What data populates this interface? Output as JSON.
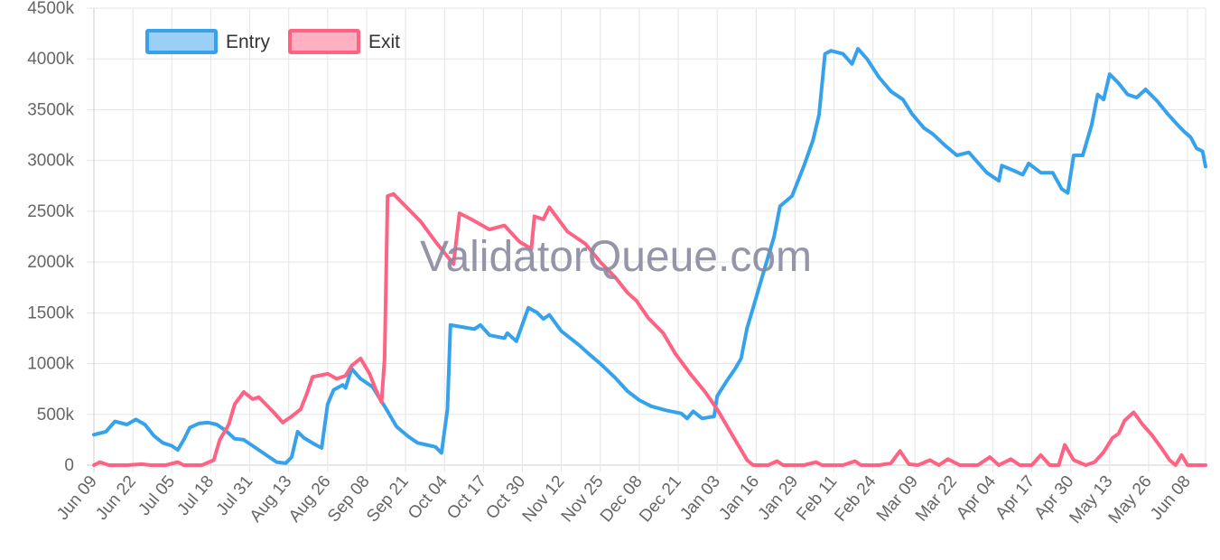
{
  "watermark": "ValidatorQueue.com",
  "colors": {
    "entry": "#36a2eb",
    "entry_fill": "#9ad0f5",
    "exit": "#ff6384",
    "exit_fill": "#ffb1c1",
    "grid": "#e5e5e5",
    "axis": "#cfcfcf",
    "text": "#666666",
    "watermark": "#8a8aa0"
  },
  "chart_data": {
    "type": "line",
    "title": "",
    "xlabel": "",
    "ylabel": "",
    "grid": true,
    "legend_position": "top-left",
    "ylim": [
      0,
      4500000
    ],
    "ytick_values": [
      0,
      500000,
      1000000,
      1500000,
      2000000,
      2500000,
      3000000,
      3500000,
      4000000,
      4500000
    ],
    "yticks": [
      "0",
      "500k",
      "1000k",
      "1500k",
      "2000k",
      "2500k",
      "3000k",
      "3500k",
      "4000k",
      "4500k"
    ],
    "x_start": "2023-06-09",
    "x_end": "2024-06-14",
    "xticks": [
      {
        "date": "2023-06-09",
        "label": "Jun 09"
      },
      {
        "date": "2023-06-22",
        "label": "Jun 22"
      },
      {
        "date": "2023-07-05",
        "label": "Jul 05"
      },
      {
        "date": "2023-07-18",
        "label": "Jul 18"
      },
      {
        "date": "2023-07-31",
        "label": "Jul 31"
      },
      {
        "date": "2023-08-13",
        "label": "Aug 13"
      },
      {
        "date": "2023-08-26",
        "label": "Aug 26"
      },
      {
        "date": "2023-09-08",
        "label": "Sep 08"
      },
      {
        "date": "2023-09-21",
        "label": "Sep 21"
      },
      {
        "date": "2023-10-04",
        "label": "Oct 04"
      },
      {
        "date": "2023-10-17",
        "label": "Oct 17"
      },
      {
        "date": "2023-10-30",
        "label": "Oct 30"
      },
      {
        "date": "2023-11-12",
        "label": "Nov 12"
      },
      {
        "date": "2023-11-25",
        "label": "Nov 25"
      },
      {
        "date": "2023-12-08",
        "label": "Dec 08"
      },
      {
        "date": "2023-12-21",
        "label": "Dec 21"
      },
      {
        "date": "2024-01-03",
        "label": "Jan 03"
      },
      {
        "date": "2024-01-16",
        "label": "Jan 16"
      },
      {
        "date": "2024-01-29",
        "label": "Jan 29"
      },
      {
        "date": "2024-02-11",
        "label": "Feb 11"
      },
      {
        "date": "2024-02-24",
        "label": "Feb 24"
      },
      {
        "date": "2024-03-09",
        "label": "Mar 09"
      },
      {
        "date": "2024-03-22",
        "label": "Mar 22"
      },
      {
        "date": "2024-04-04",
        "label": "Apr 04"
      },
      {
        "date": "2024-04-17",
        "label": "Apr 17"
      },
      {
        "date": "2024-04-30",
        "label": "Apr 30"
      },
      {
        "date": "2024-05-13",
        "label": "May 13"
      },
      {
        "date": "2024-05-26",
        "label": "May 26"
      },
      {
        "date": "2024-06-08",
        "label": "Jun 08"
      }
    ],
    "series": [
      {
        "name": "Entry",
        "color_key": "entry",
        "points": [
          [
            "2023-06-09",
            300000
          ],
          [
            "2023-06-13",
            330000
          ],
          [
            "2023-06-16",
            430000
          ],
          [
            "2023-06-20",
            400000
          ],
          [
            "2023-06-23",
            450000
          ],
          [
            "2023-06-26",
            400000
          ],
          [
            "2023-06-29",
            290000
          ],
          [
            "2023-07-02",
            220000
          ],
          [
            "2023-07-05",
            190000
          ],
          [
            "2023-07-07",
            150000
          ],
          [
            "2023-07-09",
            250000
          ],
          [
            "2023-07-11",
            370000
          ],
          [
            "2023-07-14",
            410000
          ],
          [
            "2023-07-17",
            420000
          ],
          [
            "2023-07-20",
            400000
          ],
          [
            "2023-07-23",
            340000
          ],
          [
            "2023-07-26",
            260000
          ],
          [
            "2023-07-29",
            250000
          ],
          [
            "2023-08-01",
            190000
          ],
          [
            "2023-08-05",
            110000
          ],
          [
            "2023-08-09",
            30000
          ],
          [
            "2023-08-12",
            20000
          ],
          [
            "2023-08-14",
            80000
          ],
          [
            "2023-08-16",
            330000
          ],
          [
            "2023-08-18",
            270000
          ],
          [
            "2023-08-22",
            200000
          ],
          [
            "2023-08-24",
            170000
          ],
          [
            "2023-08-26",
            600000
          ],
          [
            "2023-08-28",
            740000
          ],
          [
            "2023-08-31",
            790000
          ],
          [
            "2023-09-01",
            760000
          ],
          [
            "2023-09-03",
            950000
          ],
          [
            "2023-09-06",
            850000
          ],
          [
            "2023-09-10",
            770000
          ],
          [
            "2023-09-14",
            580000
          ],
          [
            "2023-09-18",
            380000
          ],
          [
            "2023-09-22",
            280000
          ],
          [
            "2023-09-25",
            220000
          ],
          [
            "2023-09-28",
            200000
          ],
          [
            "2023-10-01",
            180000
          ],
          [
            "2023-10-03",
            120000
          ],
          [
            "2023-10-05",
            550000
          ],
          [
            "2023-10-06",
            1380000
          ],
          [
            "2023-10-10",
            1360000
          ],
          [
            "2023-10-14",
            1340000
          ],
          [
            "2023-10-16",
            1380000
          ],
          [
            "2023-10-19",
            1280000
          ],
          [
            "2023-10-24",
            1250000
          ],
          [
            "2023-10-25",
            1300000
          ],
          [
            "2023-10-28",
            1220000
          ],
          [
            "2023-11-01",
            1550000
          ],
          [
            "2023-11-04",
            1500000
          ],
          [
            "2023-11-06",
            1440000
          ],
          [
            "2023-11-08",
            1480000
          ],
          [
            "2023-11-12",
            1320000
          ],
          [
            "2023-11-18",
            1180000
          ],
          [
            "2023-11-21",
            1100000
          ],
          [
            "2023-11-25",
            1000000
          ],
          [
            "2023-11-30",
            860000
          ],
          [
            "2023-12-04",
            730000
          ],
          [
            "2023-12-08",
            640000
          ],
          [
            "2023-12-12",
            580000
          ],
          [
            "2023-12-17",
            540000
          ],
          [
            "2023-12-22",
            510000
          ],
          [
            "2023-12-24",
            460000
          ],
          [
            "2023-12-26",
            530000
          ],
          [
            "2023-12-29",
            460000
          ],
          [
            "2024-01-02",
            480000
          ],
          [
            "2024-01-03",
            680000
          ],
          [
            "2024-01-06",
            820000
          ],
          [
            "2024-01-09",
            950000
          ],
          [
            "2024-01-11",
            1050000
          ],
          [
            "2024-01-13",
            1350000
          ],
          [
            "2024-01-15",
            1550000
          ],
          [
            "2024-01-18",
            1850000
          ],
          [
            "2024-01-22",
            2250000
          ],
          [
            "2024-01-24",
            2550000
          ],
          [
            "2024-01-28",
            2650000
          ],
          [
            "2024-02-01",
            2950000
          ],
          [
            "2024-02-04",
            3200000
          ],
          [
            "2024-02-06",
            3450000
          ],
          [
            "2024-02-08",
            4050000
          ],
          [
            "2024-02-10",
            4080000
          ],
          [
            "2024-02-14",
            4050000
          ],
          [
            "2024-02-17",
            3950000
          ],
          [
            "2024-02-19",
            4100000
          ],
          [
            "2024-02-22",
            4000000
          ],
          [
            "2024-02-26",
            3820000
          ],
          [
            "2024-03-01",
            3680000
          ],
          [
            "2024-03-05",
            3600000
          ],
          [
            "2024-03-08",
            3460000
          ],
          [
            "2024-03-12",
            3320000
          ],
          [
            "2024-03-15",
            3260000
          ],
          [
            "2024-03-19",
            3150000
          ],
          [
            "2024-03-23",
            3050000
          ],
          [
            "2024-03-27",
            3080000
          ],
          [
            "2024-03-30",
            2980000
          ],
          [
            "2024-04-02",
            2880000
          ],
          [
            "2024-04-06",
            2800000
          ],
          [
            "2024-04-07",
            2950000
          ],
          [
            "2024-04-11",
            2900000
          ],
          [
            "2024-04-14",
            2860000
          ],
          [
            "2024-04-16",
            2970000
          ],
          [
            "2024-04-20",
            2880000
          ],
          [
            "2024-04-24",
            2880000
          ],
          [
            "2024-04-27",
            2720000
          ],
          [
            "2024-04-29",
            2680000
          ],
          [
            "2024-05-01",
            3050000
          ],
          [
            "2024-05-04",
            3050000
          ],
          [
            "2024-05-07",
            3350000
          ],
          [
            "2024-05-09",
            3650000
          ],
          [
            "2024-05-11",
            3600000
          ],
          [
            "2024-05-13",
            3850000
          ],
          [
            "2024-05-16",
            3760000
          ],
          [
            "2024-05-19",
            3650000
          ],
          [
            "2024-05-22",
            3620000
          ],
          [
            "2024-05-25",
            3700000
          ],
          [
            "2024-05-29",
            3580000
          ],
          [
            "2024-06-01",
            3470000
          ],
          [
            "2024-06-05",
            3340000
          ],
          [
            "2024-06-07",
            3280000
          ],
          [
            "2024-06-09",
            3230000
          ],
          [
            "2024-06-11",
            3120000
          ],
          [
            "2024-06-13",
            3090000
          ],
          [
            "2024-06-14",
            2940000
          ]
        ]
      },
      {
        "name": "Exit",
        "color_key": "exit",
        "points": [
          [
            "2023-06-09",
            0
          ],
          [
            "2023-06-11",
            30000
          ],
          [
            "2023-06-14",
            0
          ],
          [
            "2023-06-20",
            0
          ],
          [
            "2023-06-25",
            10000
          ],
          [
            "2023-06-28",
            0
          ],
          [
            "2023-07-03",
            0
          ],
          [
            "2023-07-07",
            30000
          ],
          [
            "2023-07-09",
            0
          ],
          [
            "2023-07-15",
            0
          ],
          [
            "2023-07-19",
            50000
          ],
          [
            "2023-07-21",
            250000
          ],
          [
            "2023-07-24",
            400000
          ],
          [
            "2023-07-26",
            600000
          ],
          [
            "2023-07-29",
            720000
          ],
          [
            "2023-08-01",
            650000
          ],
          [
            "2023-08-03",
            670000
          ],
          [
            "2023-08-05",
            610000
          ],
          [
            "2023-08-08",
            520000
          ],
          [
            "2023-08-11",
            420000
          ],
          [
            "2023-08-14",
            480000
          ],
          [
            "2023-08-17",
            550000
          ],
          [
            "2023-08-19",
            700000
          ],
          [
            "2023-08-21",
            870000
          ],
          [
            "2023-08-23",
            880000
          ],
          [
            "2023-08-26",
            900000
          ],
          [
            "2023-08-29",
            850000
          ],
          [
            "2023-09-01",
            880000
          ],
          [
            "2023-09-03",
            980000
          ],
          [
            "2023-09-06",
            1050000
          ],
          [
            "2023-09-09",
            900000
          ],
          [
            "2023-09-11",
            750000
          ],
          [
            "2023-09-13",
            620000
          ],
          [
            "2023-09-14",
            1050000
          ],
          [
            "2023-09-15",
            2650000
          ],
          [
            "2023-09-17",
            2670000
          ],
          [
            "2023-09-21",
            2550000
          ],
          [
            "2023-09-26",
            2400000
          ],
          [
            "2023-10-01",
            2200000
          ],
          [
            "2023-10-07",
            1980000
          ],
          [
            "2023-10-09",
            2480000
          ],
          [
            "2023-10-13",
            2420000
          ],
          [
            "2023-10-19",
            2320000
          ],
          [
            "2023-10-24",
            2360000
          ],
          [
            "2023-10-29",
            2200000
          ],
          [
            "2023-11-02",
            2130000
          ],
          [
            "2023-11-03",
            2450000
          ],
          [
            "2023-11-06",
            2420000
          ],
          [
            "2023-11-08",
            2540000
          ],
          [
            "2023-11-10",
            2460000
          ],
          [
            "2023-11-14",
            2300000
          ],
          [
            "2023-11-20",
            2180000
          ],
          [
            "2023-11-25",
            2000000
          ],
          [
            "2023-11-30",
            1850000
          ],
          [
            "2023-12-04",
            1700000
          ],
          [
            "2023-12-07",
            1620000
          ],
          [
            "2023-12-11",
            1450000
          ],
          [
            "2023-12-16",
            1300000
          ],
          [
            "2023-12-20",
            1100000
          ],
          [
            "2023-12-25",
            900000
          ],
          [
            "2023-12-30",
            720000
          ],
          [
            "2024-01-03",
            550000
          ],
          [
            "2024-01-08",
            300000
          ],
          [
            "2024-01-13",
            50000
          ],
          [
            "2024-01-15",
            0
          ],
          [
            "2024-01-20",
            0
          ],
          [
            "2024-01-23",
            40000
          ],
          [
            "2024-01-25",
            0
          ],
          [
            "2024-02-01",
            0
          ],
          [
            "2024-02-05",
            30000
          ],
          [
            "2024-02-07",
            0
          ],
          [
            "2024-02-14",
            0
          ],
          [
            "2024-02-18",
            40000
          ],
          [
            "2024-02-20",
            0
          ],
          [
            "2024-02-26",
            0
          ],
          [
            "2024-03-01",
            20000
          ],
          [
            "2024-03-04",
            140000
          ],
          [
            "2024-03-07",
            10000
          ],
          [
            "2024-03-10",
            0
          ],
          [
            "2024-03-14",
            50000
          ],
          [
            "2024-03-17",
            0
          ],
          [
            "2024-03-20",
            60000
          ],
          [
            "2024-03-24",
            0
          ],
          [
            "2024-03-30",
            0
          ],
          [
            "2024-04-03",
            80000
          ],
          [
            "2024-04-06",
            0
          ],
          [
            "2024-04-10",
            60000
          ],
          [
            "2024-04-13",
            0
          ],
          [
            "2024-04-17",
            0
          ],
          [
            "2024-04-20",
            100000
          ],
          [
            "2024-04-23",
            0
          ],
          [
            "2024-04-26",
            0
          ],
          [
            "2024-04-28",
            200000
          ],
          [
            "2024-05-01",
            50000
          ],
          [
            "2024-05-05",
            0
          ],
          [
            "2024-05-08",
            30000
          ],
          [
            "2024-05-11",
            130000
          ],
          [
            "2024-05-14",
            270000
          ],
          [
            "2024-05-16",
            310000
          ],
          [
            "2024-05-18",
            440000
          ],
          [
            "2024-05-21",
            520000
          ],
          [
            "2024-05-24",
            400000
          ],
          [
            "2024-05-27",
            300000
          ],
          [
            "2024-05-30",
            180000
          ],
          [
            "2024-06-02",
            50000
          ],
          [
            "2024-06-04",
            0
          ],
          [
            "2024-06-06",
            100000
          ],
          [
            "2024-06-08",
            0
          ],
          [
            "2024-06-14",
            0
          ]
        ]
      }
    ]
  }
}
